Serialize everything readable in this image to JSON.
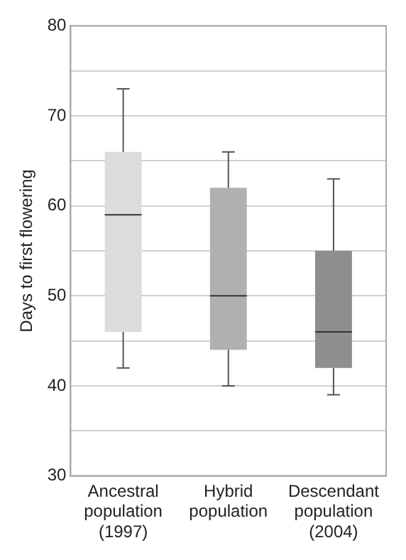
{
  "chart_data": {
    "type": "box",
    "ylabel": "Days to first flowering",
    "categories": [
      "Ancestral population (1997)",
      "Hybrid population",
      "Descendant population (2004)"
    ],
    "colors": [
      "#dcdcdc",
      "#b0b0b0",
      "#8e8e8e"
    ],
    "boxes": [
      {
        "low": 42,
        "q1": 46,
        "median": 59,
        "q3": 66,
        "high": 73
      },
      {
        "low": 40,
        "q1": 44,
        "median": 50,
        "q3": 62,
        "high": 66
      },
      {
        "low": 39,
        "q1": 42,
        "median": 46,
        "q3": 55,
        "high": 63
      }
    ],
    "ylim": [
      30,
      80
    ],
    "yticks": [
      30,
      {
        "value": 35,
        "label": null
      },
      40,
      {
        "value": 45,
        "label": null
      },
      50,
      {
        "value": 55,
        "label": null
      },
      60,
      {
        "value": 65,
        "label": null
      },
      70,
      {
        "value": 75,
        "label": null
      },
      80
    ],
    "grid": "y",
    "legend": false
  }
}
